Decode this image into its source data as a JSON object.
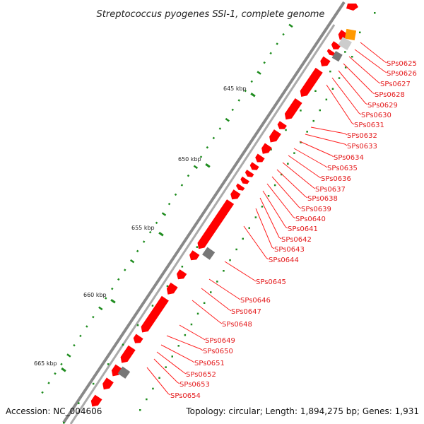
{
  "title": "Streptococcus pyogenes SSI-1, complete genome",
  "footer": {
    "accession": "Accession: NC_004606",
    "summary": "Topology: circular; Length: 1,894,275 bp; Genes: 1,931"
  },
  "axis_ticks": [
    "645 kbp",
    "650 kbp",
    "655 kbp",
    "660 kbp",
    "665 kbp"
  ],
  "gene_labels": [
    "SPs0625",
    "SPs0626",
    "SPs0627",
    "SPs0628",
    "SPs0629",
    "SPs0630",
    "SPs0631",
    "SPs0632",
    "SPs0633",
    "SPs0634",
    "SPs0635",
    "SPs0636",
    "SPs0637",
    "SPs0638",
    "SPs0639",
    "SPs0640",
    "SPs0641",
    "SPs0642",
    "SPs0643",
    "SPs0644",
    "SPs0645",
    "SPs0646",
    "SPs0647",
    "SPs0648",
    "SPs0649",
    "SPs0650",
    "SPs0651",
    "SPs0652",
    "SPs0653",
    "SPs0654"
  ],
  "colors": {
    "cds": "#ff0000",
    "rna_orange": "#ff9900",
    "rna_gray": "#777777",
    "backbone": "#888888",
    "gc_dots": "#1e8c1e",
    "label": "#e41a1c"
  }
}
